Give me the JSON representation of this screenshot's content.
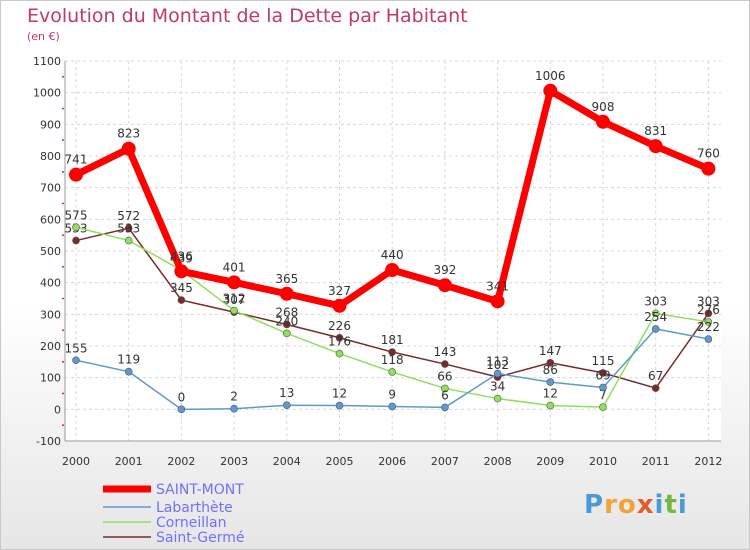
{
  "header": {
    "title": "Evolution du Montant de la Dette par Habitant",
    "subtitle": "(en €)"
  },
  "logo": {
    "letters": [
      "P",
      "r",
      "o",
      "x",
      "i",
      "t",
      "i"
    ],
    "colors": [
      "#4a9ad8",
      "#f2a23a",
      "#f2a23a",
      "#e25c2a",
      "#4a9ad8",
      "#74b843",
      "#4a9ad8"
    ]
  },
  "chart_data": {
    "type": "line",
    "title": "Evolution du Montant de la Dette par Habitant",
    "ylabel": "(en €)",
    "ylim": [
      -100,
      1100
    ],
    "yticks": [
      "-100",
      "0",
      "100",
      "200",
      "300",
      "400",
      "500",
      "600",
      "700",
      "800",
      "900",
      "1000",
      "1100"
    ],
    "x": [
      "2000",
      "2001",
      "2002",
      "2003",
      "2004",
      "2005",
      "2006",
      "2007",
      "2008",
      "2009",
      "2010",
      "2011",
      "2012"
    ],
    "grid": true,
    "legend": "bottom-left",
    "series": [
      {
        "name": "SAINT-MONT",
        "color": "#ff0000",
        "values": [
          741,
          823,
          436,
          401,
          365,
          327,
          440,
          392,
          341,
          1006,
          908,
          831,
          760
        ],
        "labels": [
          "741",
          "823",
          "436",
          "401",
          "365",
          "327",
          "440",
          "392",
          "341",
          "1006",
          "908",
          "831",
          "760"
        ]
      },
      {
        "name": "Labarthète",
        "color": "#5b9bd5",
        "values": [
          155,
          119,
          0,
          2,
          13,
          12,
          9,
          6,
          113,
          86,
          69,
          254,
          222
        ],
        "labels": [
          "155",
          "119",
          "0",
          "2",
          "13",
          "12",
          "9",
          "6",
          "113",
          "86",
          "69",
          "254",
          "222"
        ]
      },
      {
        "name": "Corneillan",
        "color": "#8fe05a",
        "values": [
          575,
          533,
          439,
          312,
          240,
          176,
          118,
          66,
          34,
          12,
          7,
          303,
          276
        ],
        "labels": [
          "575",
          "533",
          "439",
          "312",
          "240",
          "176",
          "118",
          "66",
          "34",
          "12",
          "7",
          "303",
          "276"
        ]
      },
      {
        "name": "Saint-Germé",
        "color": "#7a2a2a",
        "values": [
          533,
          572,
          345,
          307,
          268,
          226,
          181,
          143,
          102,
          147,
          115,
          67,
          303
        ],
        "labels": [
          "533",
          "572",
          "345",
          "307",
          "268",
          "226",
          "181",
          "143",
          "102",
          "147",
          "115",
          "67",
          "303"
        ]
      }
    ]
  }
}
